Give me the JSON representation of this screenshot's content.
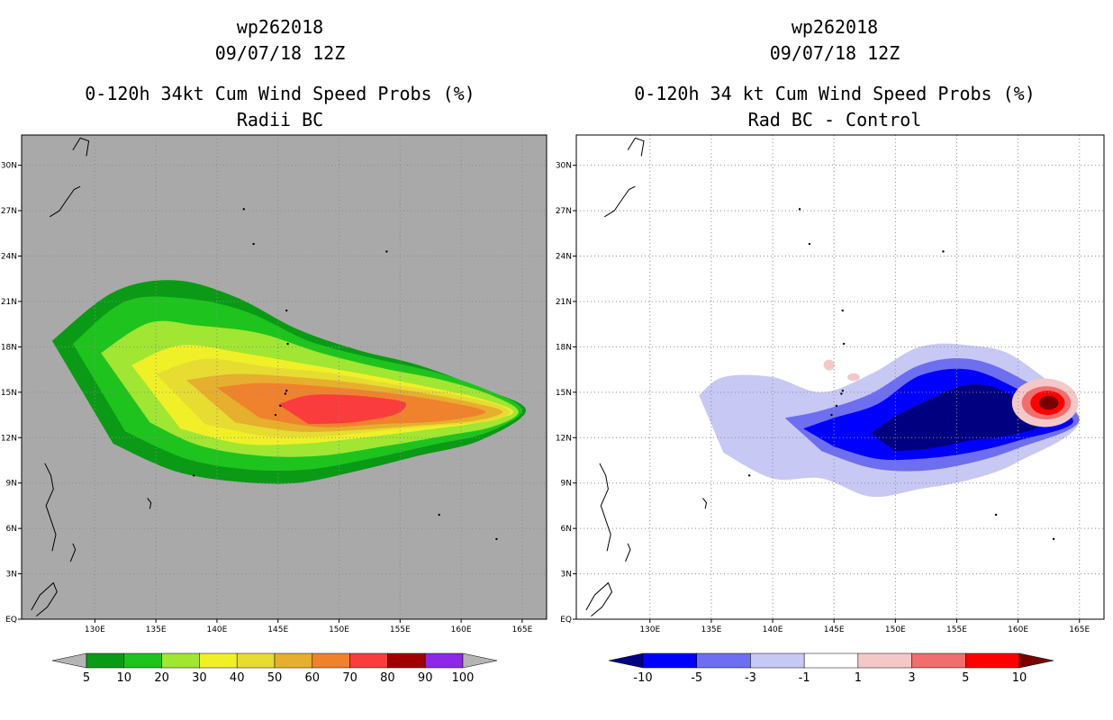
{
  "chart_data": [
    {
      "type": "heatmap",
      "title_lines": [
        "wp262018",
        "09/07/18 12Z",
        "0-120h 34kt Cum Wind Speed Probs (%)",
        "Radii BC"
      ],
      "xaxis": {
        "ticks": [
          130,
          135,
          140,
          145,
          150,
          155,
          160,
          165
        ],
        "tick_labels": [
          "130E",
          "135E",
          "140E",
          "145E",
          "150E",
          "155E",
          "160E",
          "165E"
        ],
        "range": [
          124,
          167
        ]
      },
      "yaxis": {
        "ticks": [
          0,
          3,
          6,
          9,
          12,
          15,
          18,
          21,
          24,
          27,
          30
        ],
        "tick_labels": [
          "EQ",
          "3N",
          "6N",
          "9N",
          "12N",
          "15N",
          "18N",
          "21N",
          "24N",
          "27N",
          "30N"
        ],
        "range": [
          0,
          32
        ]
      },
      "grid": true,
      "background_color": "#a9a9a9",
      "colorbar": {
        "labels": [
          "5",
          "10",
          "20",
          "30",
          "40",
          "50",
          "60",
          "70",
          "80",
          "90",
          "100"
        ],
        "colors": [
          "#0a9a16",
          "#1ec31e",
          "#a0e632",
          "#f0f028",
          "#e6dc32",
          "#e6af2d",
          "#f0822d",
          "#fa3c3c",
          "#a00000",
          "#8c28e6"
        ],
        "end_colors": [
          "#b4b4b4",
          "#b4b4b4"
        ]
      },
      "swath": {
        "tip_lon": 165.3,
        "tip_lat": 13.5,
        "tail_lon": 126.5,
        "head_lat": 16.3
      },
      "levels": [
        {
          "min": 5,
          "color": "#0a9a16",
          "lon": [
            126.5,
            131.5,
            136.5,
            141.5,
            146.5,
            151.5,
            156.5,
            161.5,
            165.3
          ],
          "north": [
            18.4,
            21.6,
            22.4,
            21.3,
            19.2,
            17.8,
            16.8,
            15.3,
            13.8
          ],
          "south": [
            15.6,
            11.6,
            9.8,
            9.1,
            9.0,
            9.8,
            10.8,
            11.8,
            13.0
          ]
        },
        {
          "min": 10,
          "color": "#1ec31e",
          "lon": [
            128.2,
            132.5,
            137.5,
            142.5,
            147.5,
            152.5,
            157.5,
            162.0,
            165.0
          ],
          "north": [
            18.2,
            21.0,
            21.2,
            20.3,
            18.4,
            17.3,
            16.4,
            15.2,
            13.8
          ],
          "south": [
            15.8,
            12.4,
            10.6,
            9.9,
            9.9,
            10.6,
            11.5,
            12.3,
            13.1
          ]
        },
        {
          "min": 20,
          "color": "#a0e632",
          "lon": [
            130.5,
            134.5,
            138.5,
            143.5,
            148.5,
            153.5,
            158.5,
            162.5,
            164.7
          ],
          "north": [
            17.6,
            19.6,
            19.4,
            18.9,
            17.6,
            16.6,
            15.8,
            14.8,
            13.7
          ],
          "south": [
            16.0,
            13.0,
            11.5,
            10.8,
            10.8,
            11.4,
            12.1,
            12.7,
            13.2
          ]
        },
        {
          "min": 30,
          "color": "#f0f028",
          "lon": [
            133.0,
            137.0,
            142.0,
            147.0,
            152.0,
            157.0,
            161.5,
            164.3
          ],
          "north": [
            16.8,
            18.1,
            17.6,
            16.9,
            16.2,
            15.4,
            14.6,
            13.7
          ],
          "south": [
            15.6,
            12.6,
            11.6,
            11.6,
            12.0,
            12.5,
            13.0,
            13.3
          ]
        },
        {
          "min": 40,
          "color": "#e6dc32",
          "lon": [
            135.0,
            139.0,
            144.0,
            149.0,
            154.0,
            158.5,
            162.5,
            164.0
          ],
          "north": [
            16.2,
            17.2,
            16.7,
            16.3,
            15.6,
            15.0,
            14.3,
            13.7
          ],
          "south": [
            15.2,
            12.9,
            12.1,
            12.1,
            12.5,
            12.8,
            13.1,
            13.3
          ]
        },
        {
          "min": 50,
          "color": "#e6af2d",
          "lon": [
            137.5,
            141.5,
            146.5,
            151.5,
            156.5,
            161.0,
            163.4
          ],
          "north": [
            15.8,
            16.2,
            16.0,
            15.6,
            15.0,
            14.3,
            13.7
          ],
          "south": [
            14.6,
            13.0,
            12.4,
            12.5,
            12.8,
            13.1,
            13.3
          ]
        },
        {
          "min": 60,
          "color": "#f0822d",
          "lon": [
            140.0,
            143.5,
            148.5,
            153.5,
            158.5,
            162.0
          ],
          "north": [
            15.3,
            15.6,
            15.4,
            15.0,
            14.4,
            13.7
          ],
          "south": [
            14.4,
            13.3,
            12.7,
            12.9,
            13.1,
            13.3
          ]
        },
        {
          "min": 70,
          "color": "#fa3c3c",
          "lon": [
            145.0,
            147.5,
            151.0,
            154.5,
            155.5
          ],
          "north": [
            14.2,
            14.8,
            14.8,
            14.5,
            14.2
          ],
          "south": [
            13.6,
            12.9,
            13.0,
            13.5,
            13.9
          ]
        }
      ]
    },
    {
      "type": "heatmap",
      "title_lines": [
        "wp262018",
        "09/07/18 12Z",
        "0-120h 34 kt Cum Wind Speed Probs (%)",
        "Rad BC - Control"
      ],
      "xaxis": {
        "ticks": [
          130,
          135,
          140,
          145,
          150,
          155,
          160,
          165
        ],
        "tick_labels": [
          "130E",
          "135E",
          "140E",
          "145E",
          "150E",
          "155E",
          "160E",
          "165E"
        ],
        "range": [
          124,
          167
        ]
      },
      "yaxis": {
        "ticks": [
          0,
          3,
          6,
          9,
          12,
          15,
          18,
          21,
          24,
          27,
          30
        ],
        "tick_labels": [
          "EQ",
          "3N",
          "6N",
          "9N",
          "12N",
          "15N",
          "18N",
          "21N",
          "24N",
          "27N",
          "30N"
        ],
        "range": [
          0,
          32
        ]
      },
      "grid": true,
      "background_color": "#ffffff",
      "colorbar": {
        "labels": [
          "-10",
          "-5",
          "-3",
          "-1",
          "1",
          "3",
          "5",
          "10"
        ],
        "colors": [
          "#0000ff",
          "#6e6ef0",
          "#c8c8f5",
          "#ffffff",
          "#f5c8c8",
          "#f06e6e",
          "#ff0000"
        ],
        "end_colors": [
          "#000080",
          "#780000"
        ]
      },
      "levels": [
        {
          "min": -1,
          "color": "#c8c8f5",
          "lon": [
            134.0,
            136.0,
            140.0,
            144.0,
            148.0,
            152.0,
            156.0,
            160.0,
            165.0
          ],
          "north": [
            14.8,
            16.0,
            16.0,
            15.0,
            16.2,
            18.0,
            18.1,
            17.2,
            13.2
          ],
          "south": [
            14.4,
            11.0,
            9.3,
            9.3,
            8.1,
            8.6,
            9.2,
            10.4,
            12.9
          ]
        },
        {
          "min": -3,
          "color": "#6e6ef0",
          "lon": [
            141.0,
            144.0,
            148.0,
            152.0,
            156.0,
            160.0,
            165.0
          ],
          "north": [
            13.3,
            13.8,
            14.9,
            16.8,
            17.2,
            16.0,
            13.2
          ],
          "south": [
            12.4,
            11.1,
            10.0,
            9.8,
            10.3,
            11.3,
            12.9
          ]
        },
        {
          "min": -5,
          "color": "#0000ff",
          "lon": [
            142.5,
            145.0,
            148.5,
            152.0,
            156.0,
            160.0,
            164.5
          ],
          "north": [
            12.6,
            13.3,
            14.2,
            16.1,
            16.5,
            15.2,
            13.1
          ],
          "south": [
            11.9,
            11.4,
            10.6,
            10.6,
            11.0,
            11.8,
            12.9
          ]
        },
        {
          "min": -10,
          "color": "#000080",
          "lon": [
            148.0,
            150.0,
            153.0,
            156.0,
            159.0,
            162.0
          ],
          "north": [
            12.3,
            13.4,
            14.6,
            15.5,
            15.0,
            13.0
          ],
          "south": [
            11.7,
            11.1,
            11.3,
            11.8,
            12.1,
            12.7
          ]
        }
      ],
      "positive_blobs": [
        {
          "color": "#f5c8c8",
          "lon": 162.2,
          "lat": 14.3,
          "rx": 2.7,
          "ry": 1.6
        },
        {
          "color": "#f06e6e",
          "lon": 162.3,
          "lat": 14.3,
          "rx": 2.0,
          "ry": 1.1
        },
        {
          "color": "#ff0000",
          "lon": 162.4,
          "lat": 14.3,
          "rx": 1.4,
          "ry": 0.8
        },
        {
          "color": "#780000",
          "lon": 162.5,
          "lat": 14.3,
          "rx": 0.8,
          "ry": 0.45
        },
        {
          "color": "#f5c8c8",
          "lon": 144.6,
          "lat": 16.8,
          "rx": 0.45,
          "ry": 0.35
        },
        {
          "color": "#f5c8c8",
          "lon": 146.6,
          "lat": 16.0,
          "rx": 0.5,
          "ry": 0.25
        }
      ]
    }
  ]
}
